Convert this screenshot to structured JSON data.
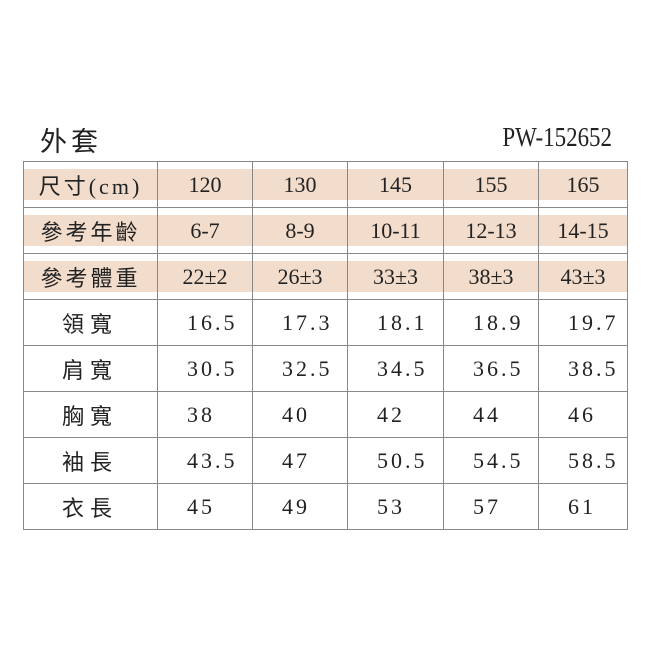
{
  "title": "外套",
  "product_code": "PW-152652",
  "header_color": "#f2dccb",
  "header_rows": [
    {
      "label": "尺寸(cm)",
      "values": [
        "120",
        "130",
        "145",
        "155",
        "165"
      ]
    },
    {
      "label": "參考年齡",
      "values": [
        "6-7",
        "8-9",
        "10-11",
        "12-13",
        "14-15"
      ]
    },
    {
      "label": "參考體重",
      "values": [
        "22±2",
        "26±3",
        "33±3",
        "38±3",
        "43±3"
      ]
    }
  ],
  "body_rows": [
    {
      "label": "領寬",
      "values": [
        "16.5",
        "17.3",
        "18.1",
        "18.9",
        "19.7"
      ]
    },
    {
      "label": "肩寬",
      "values": [
        "30.5",
        "32.5",
        "34.5",
        "36.5",
        "38.5"
      ]
    },
    {
      "label": "胸寬",
      "values": [
        "38",
        "40",
        "42",
        "44",
        "46"
      ]
    },
    {
      "label": "袖長",
      "values": [
        "43.5",
        "47",
        "50.5",
        "54.5",
        "58.5"
      ]
    },
    {
      "label": "衣長",
      "values": [
        "45",
        "49",
        "53",
        "57",
        "61"
      ]
    }
  ]
}
